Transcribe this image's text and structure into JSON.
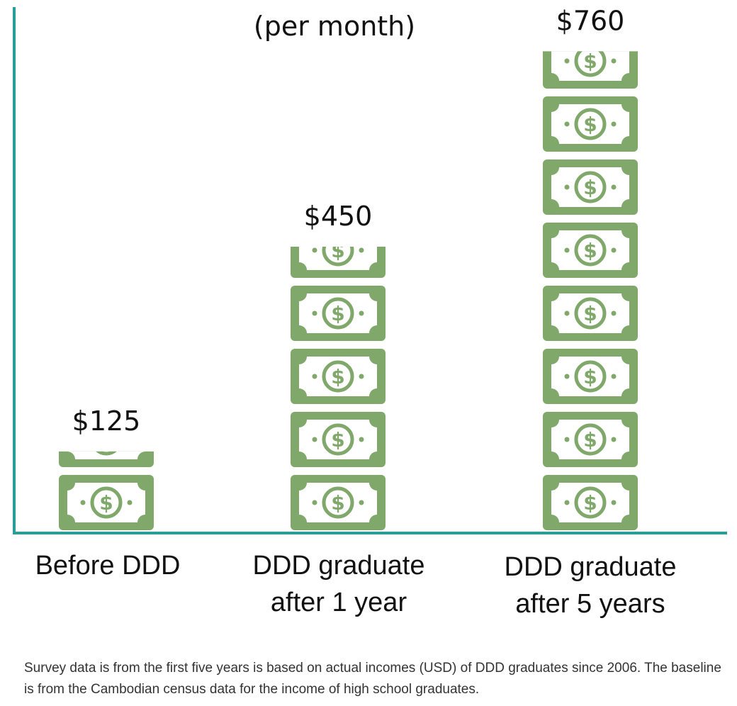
{
  "chart_data": {
    "type": "bar",
    "subtitle": "(per month)",
    "categories": [
      "Before DDD",
      "DDD graduate after 1 year",
      "DDD graduate after 5 years"
    ],
    "category_lines": [
      [
        "Before DDD"
      ],
      [
        "DDD graduate",
        "after 1 year"
      ],
      [
        "DDD graduate",
        "after 5 years"
      ]
    ],
    "values": [
      125,
      450,
      760
    ],
    "value_labels": [
      "$125",
      "$450",
      "$760"
    ],
    "unit": "USD",
    "axis_color": "#2a9d99",
    "bill_color": "#7fa86a",
    "grid": false,
    "icon": "dollar-bill-icon"
  },
  "footnote": "Survey data is from the first five years is based on actual incomes (USD) of DDD graduates since 2006. The baseline is from the Cambodian census data for the income of high school  graduates."
}
